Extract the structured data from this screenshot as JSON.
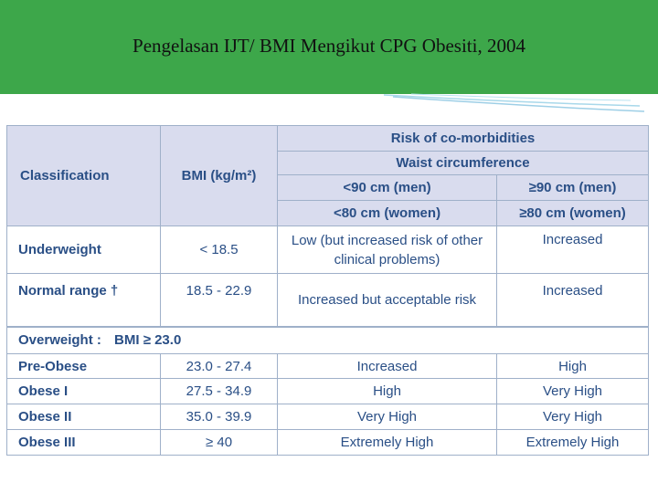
{
  "slide": {
    "title": "Pengelasan IJT/ BMI Mengikut CPG Obesiti, 2004"
  },
  "table": {
    "header": {
      "classification": "Classification",
      "bmi": "BMI (kg/m²)",
      "risk": "Risk of co-morbidities",
      "waist": "Waist circumference",
      "col_a_men": "<90 cm (men)",
      "col_b_men": "≥90 cm (men)",
      "col_a_women": "<80 cm (women)",
      "col_b_women": "≥80 cm (women)"
    },
    "rows": [
      {
        "classification": "Underweight",
        "bmi": "< 18.5",
        "risk_low": "Low (but increased risk of other clinical problems)",
        "risk_high": "Increased"
      },
      {
        "classification": "Normal range †",
        "bmi": "18.5 - 22.9",
        "risk_low": "Increased but acceptable risk",
        "risk_high": "Increased"
      }
    ],
    "overweight_label": "Overweight :",
    "overweight_bmi": "BMI ≥ 23.0",
    "sub_rows": [
      {
        "classification": "Pre-Obese",
        "bmi": "23.0 - 27.4",
        "risk_low": "Increased",
        "risk_high": "High"
      },
      {
        "classification": "Obese I",
        "bmi": "27.5 - 34.9",
        "risk_low": "High",
        "risk_high": "Very High"
      },
      {
        "classification": "Obese II",
        "bmi": "35.0 - 39.9",
        "risk_low": "Very High",
        "risk_high": "Very High"
      },
      {
        "classification": "Obese III",
        "bmi": "≥ 40",
        "risk_low": "Extremely High",
        "risk_high": "Extremely High"
      }
    ]
  }
}
